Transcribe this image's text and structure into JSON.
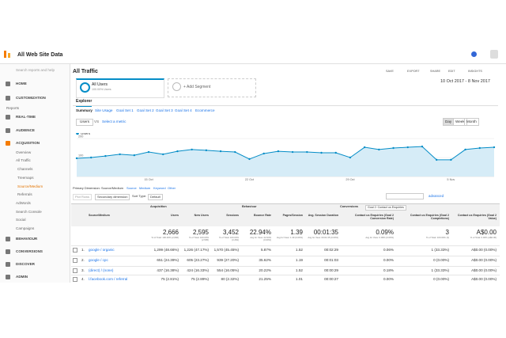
{
  "header": {
    "property": "All Web Site Data",
    "search": "Search reports and help"
  },
  "sidebar": {
    "items": [
      "HOME",
      "CUSTOMIZATION",
      "Reports",
      "REAL-TIME",
      "AUDIENCE",
      "ACQUISITION",
      "Overview",
      "All Traffic",
      "Channels",
      "Treemaps",
      "Source/Medium",
      "Referrals",
      "AdWords",
      "Search Console",
      "Social",
      "Campaigns",
      "BEHAVIOUR",
      "CONVERSIONS",
      "DISCOVER",
      "ADMIN"
    ]
  },
  "report": {
    "title": "All Traffic",
    "actions": [
      "SAVE",
      "EXPORT",
      "SHARE",
      "EDIT",
      "INSIGHTS"
    ],
    "segment": {
      "name": "All Users",
      "share": "100.00% Users"
    },
    "add_segment": "+ Add Segment",
    "date_range": "10 Oct 2017 - 8 Nov 2017",
    "tab": "Explorer",
    "subtabs": [
      "Summary",
      "Site Usage",
      "Goal Set 1",
      "Goal Set 2",
      "Goal Set 3",
      "Goal Set 4",
      "Ecommerce"
    ],
    "metric": "Users",
    "vs": "VS",
    "compare": "Select a metric",
    "granularity": [
      "Day",
      "Week",
      "Month"
    ]
  },
  "chart_data": {
    "type": "line",
    "categories": [
      null,
      null,
      null,
      null,
      null,
      "15 Oct",
      null,
      null,
      null,
      null,
      null,
      null,
      "22 Oct",
      null,
      null,
      null,
      null,
      null,
      null,
      "29 Oct",
      null,
      null,
      null,
      null,
      null,
      null,
      "5 Nov",
      null,
      null,
      null
    ],
    "series": [
      {
        "name": "Users",
        "color": "#058dc7",
        "values": [
          96,
          100,
          108,
          117,
          112,
          129,
          117,
          133,
          142,
          138,
          133,
          129,
          92,
          121,
          133,
          129,
          129,
          125,
          125,
          100,
          154,
          142,
          150,
          154,
          158,
          88,
          88,
          142,
          150,
          154
        ]
      }
    ],
    "ylim": [
      0,
      200
    ],
    "yticks": [
      100,
      200
    ],
    "grid": true
  },
  "dimensions": {
    "label": "Primary Dimension:",
    "options": [
      "Source/Medium",
      "Source",
      "Medium",
      "Keyword",
      "Other"
    ]
  },
  "controls": {
    "plot": "Plot Rows",
    "secondary": "Secondary dimension",
    "sort_label": "Sort Type:",
    "sort": "Default",
    "advanced": "advanced"
  },
  "table": {
    "groups": [
      "Acquisition",
      "Behaviour",
      "Conversions"
    ],
    "goal": "Goal 2: Contact us Enquiries",
    "columns": [
      "Source/Medium",
      "Users",
      "New Users",
      "Sessions",
      "Bounce Rate",
      "Pages/Session",
      "Avg. Session Duration",
      "Contact us Enquiries (Goal 2 Conversion Rate)",
      "Contact us Enquiries (Goal 2 Completions)",
      "Contact us Enquiries (Goal 2 Value)"
    ],
    "totals": [
      {
        "value": "2,666",
        "note": "% of Total: 100.00% (2,666)"
      },
      {
        "value": "2,595",
        "note": "% of Total: 100.00% (2,595)"
      },
      {
        "value": "3,452",
        "note": "% of Total: 100.00% (3,452)"
      },
      {
        "value": "22.94%",
        "note": "Avg for View: 22.94% (0.00%)"
      },
      {
        "value": "1.39",
        "note": "Avg for View: 1.39 (0.00%)"
      },
      {
        "value": "00:01:35",
        "note": "Avg for View: 00:01:35 (0.00%)"
      },
      {
        "value": "0.09%",
        "note": "Avg for View: 0.09% (0.00%)"
      },
      {
        "value": "3",
        "note": "% of Total: 100.00% (3)"
      },
      {
        "value": "A$0.00",
        "note": "% of Total: 0.00% (A$0.00)"
      }
    ],
    "rows": [
      [
        "1.",
        "google / organic",
        "1,299 (48.66%)",
        "1,226 (47.17%)",
        "1,570 (45.45%)",
        "5.87%",
        "1.52",
        "00:02:29",
        "0.06%",
        "1 (33.33%)",
        "A$0.00 (0.00%)"
      ],
      [
        "2.",
        "google / cpc",
        "651 (24.39%)",
        "605 (23.27%)",
        "939 (27.20%)",
        "35.62%",
        "1.19",
        "00:01:03",
        "0.00%",
        "0 (0.00%)",
        "A$0.00 (0.00%)"
      ],
      [
        "3.",
        "(direct) / (none)",
        "437 (16.38%)",
        "424 (16.33%)",
        "554 (16.05%)",
        "20.22%",
        "1.52",
        "00:00:29",
        "0.18%",
        "1 (33.33%)",
        "A$0.00 (0.00%)"
      ],
      [
        "4.",
        "l.facebook.com / referral",
        "75 (2.81%)",
        "75 (2.89%)",
        "80 (2.32%)",
        "21.25%",
        "1.01",
        "00:00:27",
        "0.00%",
        "0 (0.00%)",
        "A$0.00 (0.00%)"
      ]
    ]
  }
}
